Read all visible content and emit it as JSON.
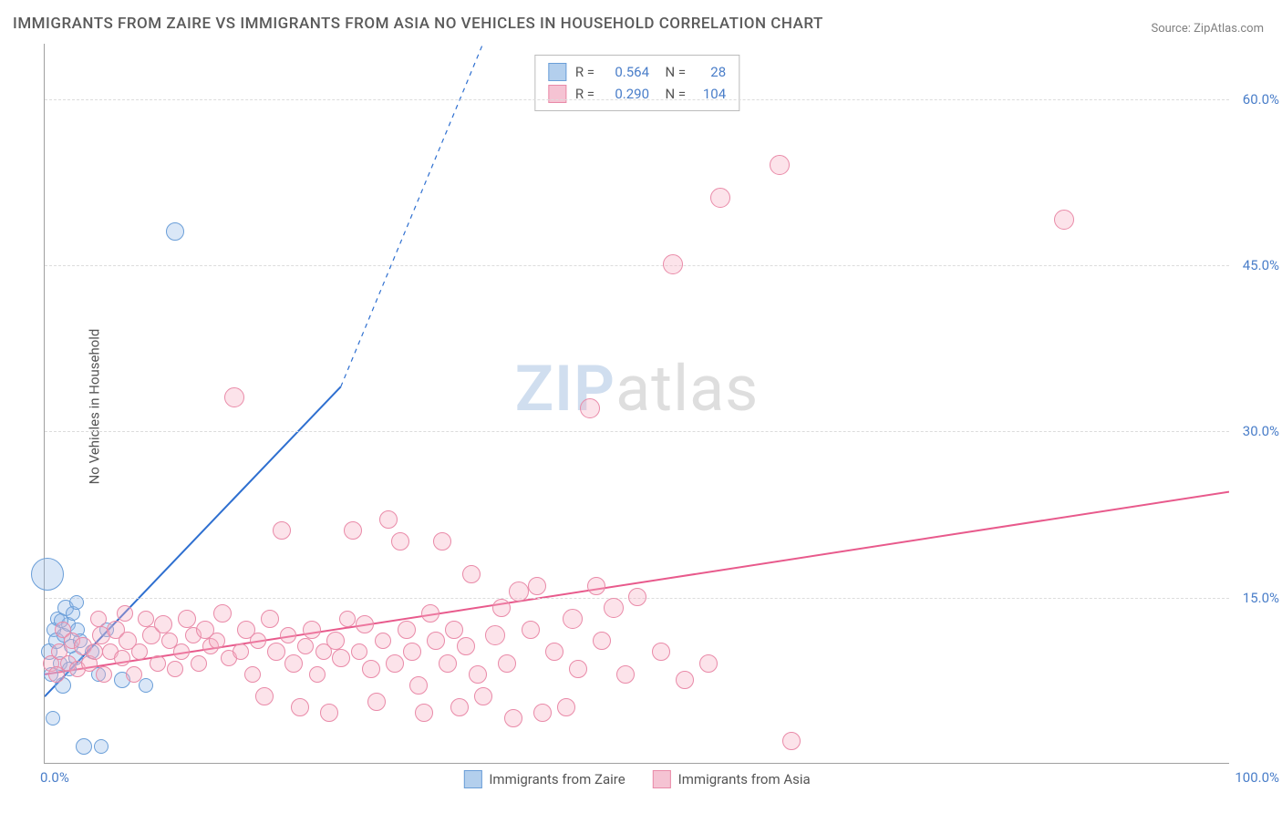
{
  "title": "IMMIGRANTS FROM ZAIRE VS IMMIGRANTS FROM ASIA NO VEHICLES IN HOUSEHOLD CORRELATION CHART",
  "source": "Source: ZipAtlas.com",
  "ylabel": "No Vehicles in Household",
  "watermark": {
    "part1": "ZIP",
    "part2": "atlas"
  },
  "chart": {
    "type": "scatter",
    "xlim": [
      0,
      100
    ],
    "ylim": [
      0,
      65
    ],
    "yticks": [
      15,
      30,
      45,
      60
    ],
    "ytick_labels": [
      "15.0%",
      "30.0%",
      "45.0%",
      "60.0%"
    ],
    "xtick_min": "0.0%",
    "xtick_max": "100.0%",
    "background_color": "#ffffff",
    "grid_color": "#dcdcdc",
    "grid_dash": true,
    "axis_color": "#a0a0a0",
    "tick_font_color": "#4a7ec9",
    "label_font_color": "#555555",
    "title_font_color": "#5a5a5a",
    "title_fontsize": 17,
    "label_fontsize": 15,
    "tick_fontsize": 15,
    "series": [
      {
        "name": "Immigrants from Zaire",
        "color_fill": "rgba(148,186,231,0.35)",
        "color_stroke": "#6a9ed8",
        "swatch_fill": "#b3cfed",
        "swatch_stroke": "#6a9ed8",
        "R": "0.564",
        "N": "28",
        "trend": {
          "x1": 0,
          "y1": 6,
          "x2": 25,
          "y2": 34,
          "dash_x2": 37,
          "dash_y2": 65,
          "color": "#2e6fd0",
          "width": 2
        },
        "points": [
          {
            "x": 0.2,
            "y": 17,
            "r": 18
          },
          {
            "x": 0.4,
            "y": 10,
            "r": 9
          },
          {
            "x": 0.5,
            "y": 8,
            "r": 8
          },
          {
            "x": 0.7,
            "y": 4,
            "r": 8
          },
          {
            "x": 0.8,
            "y": 12,
            "r": 8
          },
          {
            "x": 1.0,
            "y": 11,
            "r": 9
          },
          {
            "x": 1.1,
            "y": 13,
            "r": 8
          },
          {
            "x": 1.3,
            "y": 9,
            "r": 8
          },
          {
            "x": 1.5,
            "y": 7,
            "r": 9
          },
          {
            "x": 1.6,
            "y": 11.5,
            "r": 8
          },
          {
            "x": 1.8,
            "y": 14,
            "r": 9
          },
          {
            "x": 2.0,
            "y": 12.5,
            "r": 8
          },
          {
            "x": 2.2,
            "y": 10.5,
            "r": 8
          },
          {
            "x": 2.4,
            "y": 13.5,
            "r": 8
          },
          {
            "x": 2.6,
            "y": 9.5,
            "r": 8
          },
          {
            "x": 2.7,
            "y": 14.5,
            "r": 8
          },
          {
            "x": 2.8,
            "y": 12,
            "r": 8
          },
          {
            "x": 3.0,
            "y": 11,
            "r": 8
          },
          {
            "x": 3.3,
            "y": 1.5,
            "r": 9
          },
          {
            "x": 4.0,
            "y": 10,
            "r": 8
          },
          {
            "x": 4.5,
            "y": 8,
            "r": 8
          },
          {
            "x": 4.8,
            "y": 1.5,
            "r": 8
          },
          {
            "x": 5.2,
            "y": 12,
            "r": 8
          },
          {
            "x": 6.5,
            "y": 7.5,
            "r": 9
          },
          {
            "x": 8.5,
            "y": 7,
            "r": 8
          },
          {
            "x": 11,
            "y": 48,
            "r": 10
          },
          {
            "x": 2.1,
            "y": 8.5,
            "r": 8
          },
          {
            "x": 1.4,
            "y": 12.8,
            "r": 8
          }
        ]
      },
      {
        "name": "Immigrants from Asia",
        "color_fill": "rgba(245,176,196,0.35)",
        "color_stroke": "#e98aa8",
        "swatch_fill": "#f5c3d3",
        "swatch_stroke": "#e98aa8",
        "R": "0.290",
        "N": "104",
        "trend": {
          "x1": 0,
          "y1": 8,
          "x2": 100,
          "y2": 24.5,
          "color": "#e85a8c",
          "width": 2
        },
        "points": [
          {
            "x": 0.5,
            "y": 9,
            "r": 9
          },
          {
            "x": 1,
            "y": 8,
            "r": 9
          },
          {
            "x": 1.2,
            "y": 10,
            "r": 9
          },
          {
            "x": 1.5,
            "y": 12,
            "r": 9
          },
          {
            "x": 2,
            "y": 9,
            "r": 9
          },
          {
            "x": 2.3,
            "y": 11,
            "r": 9
          },
          {
            "x": 2.8,
            "y": 8.5,
            "r": 9
          },
          {
            "x": 3.2,
            "y": 10.5,
            "r": 10
          },
          {
            "x": 3.8,
            "y": 9,
            "r": 9
          },
          {
            "x": 4.2,
            "y": 10,
            "r": 9
          },
          {
            "x": 4.8,
            "y": 11.5,
            "r": 10
          },
          {
            "x": 5,
            "y": 8,
            "r": 9
          },
          {
            "x": 5.5,
            "y": 10,
            "r": 9
          },
          {
            "x": 6,
            "y": 12,
            "r": 10
          },
          {
            "x": 6.5,
            "y": 9.5,
            "r": 9
          },
          {
            "x": 7,
            "y": 11,
            "r": 10
          },
          {
            "x": 7.5,
            "y": 8,
            "r": 9
          },
          {
            "x": 8,
            "y": 10,
            "r": 9
          },
          {
            "x": 8.5,
            "y": 13,
            "r": 9
          },
          {
            "x": 9,
            "y": 11.5,
            "r": 10
          },
          {
            "x": 9.5,
            "y": 9,
            "r": 9
          },
          {
            "x": 10,
            "y": 12.5,
            "r": 10
          },
          {
            "x": 10.5,
            "y": 11,
            "r": 9
          },
          {
            "x": 11,
            "y": 8.5,
            "r": 9
          },
          {
            "x": 11.5,
            "y": 10,
            "r": 9
          },
          {
            "x": 12,
            "y": 13,
            "r": 10
          },
          {
            "x": 12.5,
            "y": 11.5,
            "r": 9
          },
          {
            "x": 13,
            "y": 9,
            "r": 9
          },
          {
            "x": 13.5,
            "y": 12,
            "r": 10
          },
          {
            "x": 14,
            "y": 10.5,
            "r": 9
          },
          {
            "x": 14.5,
            "y": 11,
            "r": 9
          },
          {
            "x": 15,
            "y": 13.5,
            "r": 10
          },
          {
            "x": 15.5,
            "y": 9.5,
            "r": 9
          },
          {
            "x": 16,
            "y": 33,
            "r": 11
          },
          {
            "x": 16.5,
            "y": 10,
            "r": 9
          },
          {
            "x": 17,
            "y": 12,
            "r": 10
          },
          {
            "x": 17.5,
            "y": 8,
            "r": 9
          },
          {
            "x": 18,
            "y": 11,
            "r": 9
          },
          {
            "x": 18.5,
            "y": 6,
            "r": 10
          },
          {
            "x": 19,
            "y": 13,
            "r": 10
          },
          {
            "x": 19.5,
            "y": 10,
            "r": 10
          },
          {
            "x": 20,
            "y": 21,
            "r": 10
          },
          {
            "x": 20.5,
            "y": 11.5,
            "r": 9
          },
          {
            "x": 21,
            "y": 9,
            "r": 10
          },
          {
            "x": 21.5,
            "y": 5,
            "r": 10
          },
          {
            "x": 22,
            "y": 10.5,
            "r": 9
          },
          {
            "x": 22.5,
            "y": 12,
            "r": 10
          },
          {
            "x": 23,
            "y": 8,
            "r": 9
          },
          {
            "x": 23.5,
            "y": 10,
            "r": 9
          },
          {
            "x": 24,
            "y": 4.5,
            "r": 10
          },
          {
            "x": 24.5,
            "y": 11,
            "r": 10
          },
          {
            "x": 25,
            "y": 9.5,
            "r": 10
          },
          {
            "x": 25.5,
            "y": 13,
            "r": 9
          },
          {
            "x": 26,
            "y": 21,
            "r": 10
          },
          {
            "x": 26.5,
            "y": 10,
            "r": 9
          },
          {
            "x": 27,
            "y": 12.5,
            "r": 10
          },
          {
            "x": 27.5,
            "y": 8.5,
            "r": 10
          },
          {
            "x": 28,
            "y": 5.5,
            "r": 10
          },
          {
            "x": 28.5,
            "y": 11,
            "r": 9
          },
          {
            "x": 29,
            "y": 22,
            "r": 10
          },
          {
            "x": 29.5,
            "y": 9,
            "r": 10
          },
          {
            "x": 30,
            "y": 20,
            "r": 10
          },
          {
            "x": 30.5,
            "y": 12,
            "r": 10
          },
          {
            "x": 31,
            "y": 10,
            "r": 10
          },
          {
            "x": 31.5,
            "y": 7,
            "r": 10
          },
          {
            "x": 32,
            "y": 4.5,
            "r": 10
          },
          {
            "x": 32.5,
            "y": 13.5,
            "r": 10
          },
          {
            "x": 33,
            "y": 11,
            "r": 10
          },
          {
            "x": 33.5,
            "y": 20,
            "r": 10
          },
          {
            "x": 34,
            "y": 9,
            "r": 10
          },
          {
            "x": 34.5,
            "y": 12,
            "r": 10
          },
          {
            "x": 35,
            "y": 5,
            "r": 10
          },
          {
            "x": 35.5,
            "y": 10.5,
            "r": 10
          },
          {
            "x": 36,
            "y": 17,
            "r": 10
          },
          {
            "x": 36.5,
            "y": 8,
            "r": 10
          },
          {
            "x": 37,
            "y": 6,
            "r": 10
          },
          {
            "x": 38,
            "y": 11.5,
            "r": 11
          },
          {
            "x": 38.5,
            "y": 14,
            "r": 10
          },
          {
            "x": 39,
            "y": 9,
            "r": 10
          },
          {
            "x": 39.5,
            "y": 4,
            "r": 10
          },
          {
            "x": 40,
            "y": 15.5,
            "r": 11
          },
          {
            "x": 41,
            "y": 12,
            "r": 10
          },
          {
            "x": 41.5,
            "y": 16,
            "r": 10
          },
          {
            "x": 42,
            "y": 4.5,
            "r": 10
          },
          {
            "x": 43,
            "y": 10,
            "r": 10
          },
          {
            "x": 44,
            "y": 5,
            "r": 10
          },
          {
            "x": 44.5,
            "y": 13,
            "r": 11
          },
          {
            "x": 45,
            "y": 8.5,
            "r": 10
          },
          {
            "x": 46,
            "y": 32,
            "r": 11
          },
          {
            "x": 46.5,
            "y": 16,
            "r": 10
          },
          {
            "x": 47,
            "y": 11,
            "r": 10
          },
          {
            "x": 48,
            "y": 14,
            "r": 11
          },
          {
            "x": 49,
            "y": 8,
            "r": 10
          },
          {
            "x": 50,
            "y": 15,
            "r": 10
          },
          {
            "x": 52,
            "y": 10,
            "r": 10
          },
          {
            "x": 53,
            "y": 45,
            "r": 11
          },
          {
            "x": 54,
            "y": 7.5,
            "r": 10
          },
          {
            "x": 56,
            "y": 9,
            "r": 10
          },
          {
            "x": 57,
            "y": 51,
            "r": 11
          },
          {
            "x": 62,
            "y": 54,
            "r": 11
          },
          {
            "x": 63,
            "y": 2,
            "r": 10
          },
          {
            "x": 86,
            "y": 49,
            "r": 11
          },
          {
            "x": 4.5,
            "y": 13,
            "r": 9
          },
          {
            "x": 6.8,
            "y": 13.5,
            "r": 9
          }
        ]
      }
    ]
  },
  "bottom_legend": [
    {
      "label": "Immigrants from Zaire",
      "fill": "#b3cfed",
      "stroke": "#6a9ed8"
    },
    {
      "label": "Immigrants from Asia",
      "fill": "#f5c3d3",
      "stroke": "#e98aa8"
    }
  ]
}
